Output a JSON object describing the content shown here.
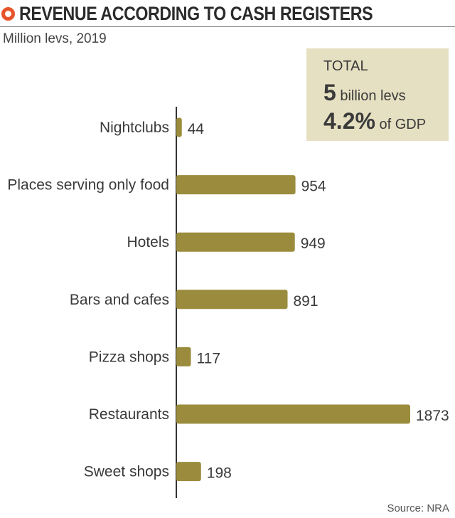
{
  "title": "REVENUE ACCORDING TO CASH REGISTERS",
  "subtitle": "Million levs, 2019",
  "total_box": {
    "label": "TOTAL",
    "line1_value": "5",
    "line1_unit": " billion levs",
    "line2_value": "4.2%",
    "line2_unit": " of GDP"
  },
  "source": "Source: NRA",
  "colors": {
    "bar": "#9a8c3c",
    "accent": "#e8542a",
    "box": "#e6e0c2"
  },
  "chart_data": {
    "type": "bar",
    "orientation": "horizontal",
    "categories": [
      "Nightclubs",
      "Places serving only food",
      "Hotels",
      "Bars and cafes",
      "Pizza shops",
      "Restaurants",
      "Sweet shops"
    ],
    "values": [
      44,
      954,
      949,
      891,
      117,
      1873,
      198
    ],
    "value_labels": [
      "44",
      "954",
      "949",
      "891",
      "117",
      "1873",
      "198"
    ],
    "title": "REVENUE ACCORDING TO CASH REGISTERS",
    "subtitle": "Million levs, 2019",
    "xlim": [
      0,
      1873
    ],
    "grid": false,
    "legend": "none"
  }
}
